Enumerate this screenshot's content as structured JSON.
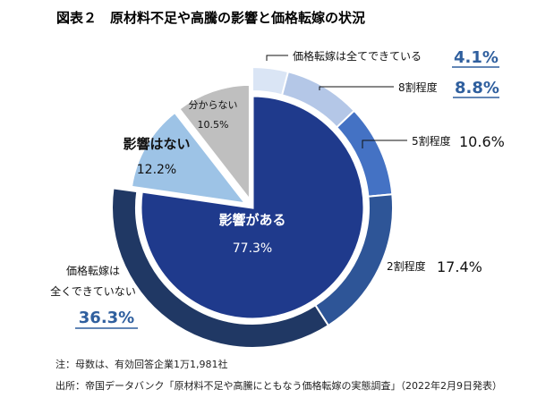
{
  "chart_data": {
    "type": "pie",
    "title": "図表２　原材料不足や高騰の影響と価格転嫁の状況",
    "inner": [
      {
        "name": "影響がある",
        "value": 77.3,
        "label": "77.3%",
        "color": "#1f3a8c"
      },
      {
        "name": "影響はない",
        "value": 12.2,
        "label": "12.2%",
        "color": "#9dc3e6"
      },
      {
        "name": "分からない",
        "value": 10.5,
        "label": "10.5%",
        "color": "#bfbfbf"
      }
    ],
    "outer": [
      {
        "name": "価格転嫁は全てできている",
        "value": 4.1,
        "label": "4.1%",
        "color": "#dae5f5"
      },
      {
        "name": "8割程度",
        "value": 8.8,
        "label": "8.8%",
        "color": "#b4c7e7"
      },
      {
        "name": "5割程度",
        "value": 10.6,
        "label": "10.6%",
        "color": "#4472c4"
      },
      {
        "name": "2割程度",
        "value": 17.4,
        "label": "17.4%",
        "color": "#2e5597"
      },
      {
        "name": "価格転嫁は全くできていない",
        "value": 36.3,
        "label": "36.3%",
        "color": "#203864"
      }
    ],
    "labels": {
      "affected_name": "影響がある",
      "affected_value": "77.3%",
      "none_name": "影響はない",
      "none_value": "12.2%",
      "unknown_name": "分からない",
      "unknown_value": "10.5%",
      "all_name": "価格転嫁は全てできている",
      "all_value": "4.1%",
      "p80_name": "8割程度",
      "p80_value": "8.8%",
      "p50_name": "5割程度",
      "p50_value": "10.6%",
      "p20_name": "2割程度",
      "p20_value": "17.4%",
      "none_pass_name_1": "価格転嫁は",
      "none_pass_name_2": "全くできていない",
      "none_pass_value": "36.3%"
    },
    "notes": [
      "注：母数は、有効回答企業1万1,981社",
      "出所：帝国データバンク「原材料不足や高騰にともなう価格転嫁の実態調査」（2022年2月9日発表）"
    ],
    "colors": {
      "highlight_blue": "#2f5f9e",
      "text_dark": "#111111"
    }
  }
}
